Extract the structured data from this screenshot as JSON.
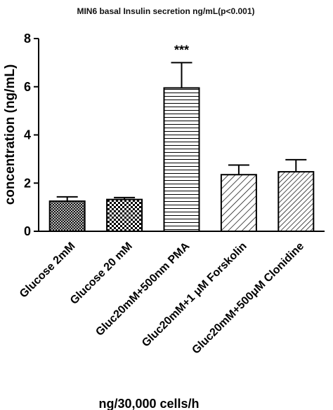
{
  "chart_data": {
    "type": "bar",
    "title": "MIN6 basal Insulin secretion ng/mL(p<0.001)",
    "ylabel": "concentration (ng/mL)",
    "xlabel": "ng/30,000 cells/h",
    "ylim": [
      0,
      8
    ],
    "yticks": [
      "0",
      "2",
      "4",
      "6",
      "8"
    ],
    "categories": [
      "Glucose 2mM",
      "Glucose 20 mM",
      "Gluc20mM+500nm PMA",
      "Gluc20mM+1 μM Forskolin",
      "Gluc20mM+500μM Clonidine"
    ],
    "values": [
      1.25,
      1.32,
      5.95,
      2.35,
      2.47
    ],
    "errors": [
      0.18,
      0.08,
      1.05,
      0.4,
      0.5
    ],
    "patterns": [
      "crosshatch-dense",
      "checker",
      "horizontal-lines",
      "diagonal-lines",
      "diagonal-lines-dense"
    ],
    "annotations": [
      {
        "category_index": 2,
        "text": "***"
      }
    ],
    "grid": false,
    "legend": "none",
    "colors": {
      "ink": "#000000",
      "background": "#ffffff"
    }
  }
}
